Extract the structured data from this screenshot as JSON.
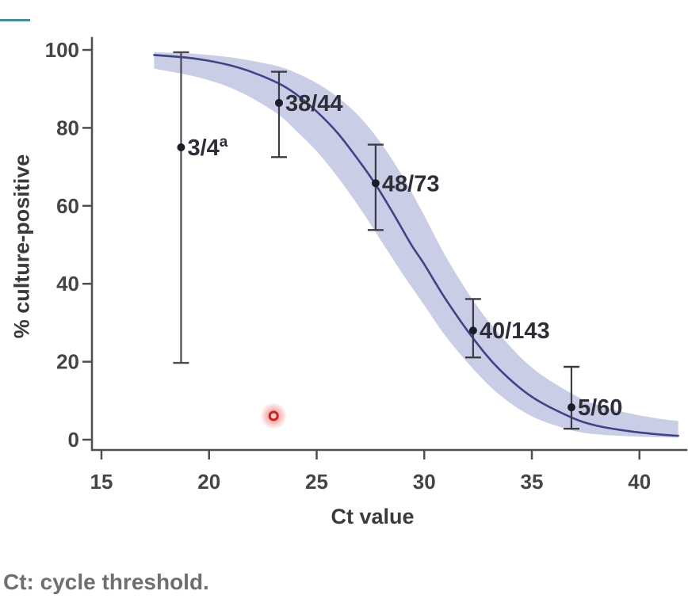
{
  "accent_color": "#4a8b97",
  "footnote": "Ct: cycle threshold.",
  "chart_data": {
    "type": "scatter",
    "title": "",
    "xlabel": "Ct value",
    "ylabel": "% culture-positive",
    "x_ticks": [
      15,
      20,
      25,
      30,
      35,
      40
    ],
    "y_ticks": [
      0,
      20,
      40,
      60,
      80,
      100
    ],
    "xlim": [
      14.6,
      42.2
    ],
    "ylim": [
      0,
      104
    ],
    "grid": false,
    "legend": "none",
    "axis_color": "#4f4f4f",
    "tick_label_color": "#454545",
    "point_color": "#1d1d28",
    "label_color": "#2e2e38",
    "points": [
      {
        "label": "3/4",
        "superscript": "a",
        "ct": 18.7,
        "percent": 75.0,
        "ci_low": 19.7,
        "ci_high": 99.4,
        "bar_color": "#4a4a50"
      },
      {
        "label": "38/44",
        "superscript": "",
        "ct": 23.25,
        "percent": 86.4,
        "ci_low": 72.5,
        "ci_high": 94.4,
        "bar_color": "#3c3c46"
      },
      {
        "label": "48/73",
        "superscript": "",
        "ct": 27.74,
        "percent": 65.8,
        "ci_low": 53.8,
        "ci_high": 75.7,
        "bar_color": "#3c3c46"
      },
      {
        "label": "40/143",
        "superscript": "",
        "ct": 32.27,
        "percent": 28.0,
        "ci_low": 21.1,
        "ci_high": 36.1,
        "bar_color": "#3c3c46"
      },
      {
        "label": "5/60",
        "superscript": "",
        "ct": 36.84,
        "percent": 8.3,
        "ci_low": 2.8,
        "ci_high": 18.7,
        "bar_color": "#3c3c46"
      }
    ],
    "fit_curve": {
      "color": "#3f4484",
      "ct": [
        17.45,
        19,
        20,
        21,
        22,
        23.2,
        24,
        25,
        26,
        27,
        27.7,
        28.5,
        29.4,
        30,
        31,
        32.3,
        33.5,
        35,
        36.8,
        38,
        39.5,
        41,
        41.8
      ],
      "percent": [
        98.7,
        98.0,
        97.2,
        96.0,
        94.3,
        91.5,
        88.8,
        84.2,
        78.5,
        71.3,
        65.8,
        58.6,
        50.0,
        45.0,
        36.0,
        25.8,
        18.0,
        11.0,
        5.8,
        3.6,
        2.2,
        1.3,
        1.0
      ]
    },
    "confidence_band": {
      "color": "#c9cde6",
      "ct": [
        17.45,
        19,
        20,
        21,
        22,
        23.2,
        24,
        25,
        26,
        27,
        28,
        29,
        30,
        31,
        32.3,
        33.5,
        35,
        36.8,
        38,
        39.5,
        41,
        41.8
      ],
      "upper": [
        99.4,
        99.1,
        98.7,
        98.1,
        97.2,
        95.8,
        94.2,
        91.5,
        87.8,
        82.8,
        76.0,
        67.5,
        57.5,
        47.0,
        35.5,
        27.0,
        18.5,
        12.0,
        9.0,
        6.8,
        5.3,
        4.8
      ],
      "lower": [
        95.2,
        93.6,
        92.2,
        90.3,
        87.6,
        83.5,
        79.5,
        74.0,
        67.2,
        59.5,
        51.0,
        42.5,
        34.5,
        26.5,
        18.0,
        11.5,
        6.0,
        2.5,
        1.4,
        0.9,
        0.6,
        0.5
      ]
    },
    "highlight_marker": {
      "ct": 23.0,
      "percent": 6.1,
      "ring_color": "#c42525",
      "glow_color": "#e84b4b",
      "center_fill": "#f3caca"
    }
  }
}
